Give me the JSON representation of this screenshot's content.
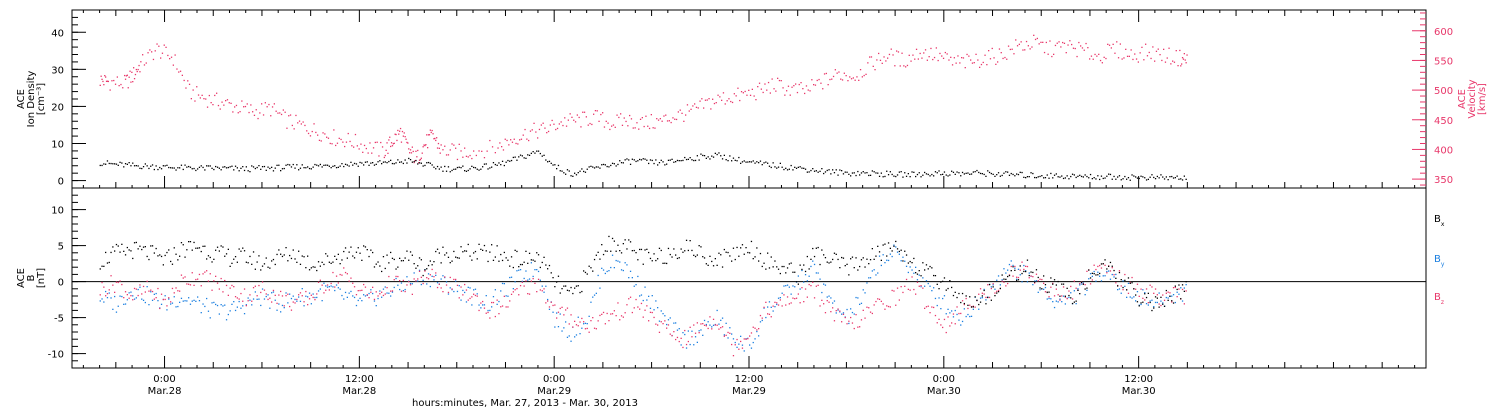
{
  "chart_data": [
    {
      "type": "scatter",
      "panel": "top",
      "left_axis": {
        "label_lines": [
          "ACE",
          "Ion Density",
          "[cm⁻³]"
        ],
        "ylim": [
          -2,
          46
        ],
        "ticks": [
          0,
          10,
          20,
          30,
          40
        ],
        "tick_labels": [
          "0",
          "10",
          "20",
          "30",
          "40"
        ],
        "color": "#000000"
      },
      "right_axis": {
        "label_lines": [
          "ACE",
          "Velocity",
          "[km/s]"
        ],
        "ylim": [
          335,
          635
        ],
        "ticks": [
          350,
          400,
          450,
          500,
          550,
          600
        ],
        "tick_labels": [
          "350",
          "400",
          "450",
          "500",
          "550",
          "600"
        ],
        "color": "#e8376a"
      },
      "series": [
        {
          "color": "#e8376a",
          "axis": "right",
          "x": [
            -4,
            -3.5,
            -2.5,
            -2,
            -1.5,
            -0.5,
            0.5,
            1.5,
            2.5,
            3.5,
            4.5,
            5.5,
            6.5,
            7.5,
            8.5,
            9.5,
            10.5,
            11.5,
            12.5,
            13.5,
            14,
            14.5,
            15,
            15.5,
            16,
            16.5,
            17,
            18,
            19,
            20.5,
            21.5,
            22.5,
            23.5,
            24.5,
            25.5,
            26.5,
            27.5,
            28.5,
            29.5,
            30.5,
            31.5,
            32.5,
            33.5,
            34.5,
            35.5,
            36.5,
            37.5,
            38.5,
            39.5,
            40.5,
            41.5,
            42.5,
            43.5,
            44.5,
            45.5,
            46.5,
            47.5,
            48.5,
            49.5,
            50.5,
            51.5,
            52.5,
            53.5,
            54.5,
            55.5,
            56.5,
            57.5,
            58.5,
            59.5,
            60.5,
            61.5,
            62.5,
            63
          ],
          "y": [
            518,
            515,
            512,
            525,
            545,
            570,
            555,
            498,
            487,
            480,
            472,
            465,
            470,
            450,
            440,
            430,
            420,
            415,
            405,
            398,
            415,
            430,
            400,
            385,
            410,
            425,
            400,
            396,
            398,
            405,
            420,
            430,
            435,
            448,
            450,
            455,
            445,
            450,
            445,
            448,
            458,
            465,
            480,
            488,
            492,
            498,
            510,
            502,
            500,
            515,
            528,
            525,
            545,
            560,
            550,
            565,
            560,
            548,
            548,
            555,
            560,
            575,
            580,
            570,
            575,
            568,
            558,
            570,
            560,
            565,
            560,
            555,
            552
          ]
        },
        {
          "color": "#000000",
          "axis": "left",
          "x": [
            -4,
            -3,
            -2,
            -1,
            0,
            1,
            2,
            3,
            4,
            5,
            6,
            7,
            8,
            9,
            10,
            11,
            12,
            13,
            14,
            15,
            16,
            17,
            18,
            19,
            20,
            21,
            22,
            23,
            24,
            25,
            26,
            27,
            28,
            29,
            30,
            31,
            32,
            33,
            34,
            35,
            36,
            37,
            38,
            39,
            40,
            41,
            42,
            43,
            44,
            45,
            46,
            47,
            48,
            49,
            50,
            51,
            52,
            53,
            54,
            55,
            56,
            57,
            58,
            59,
            60,
            61,
            62,
            63
          ],
          "y": [
            5,
            4.5,
            4.2,
            4,
            3.8,
            3.6,
            3.5,
            3.5,
            3.4,
            3.3,
            3.5,
            3.6,
            3.8,
            4,
            4.2,
            4.5,
            4.8,
            4.8,
            5,
            5.5,
            4.5,
            3.5,
            3.2,
            3.5,
            4,
            5,
            6.5,
            8,
            4,
            2,
            3,
            4,
            5,
            5.5,
            5,
            5,
            6,
            6.5,
            7,
            6,
            5,
            4.5,
            4,
            3.5,
            3,
            2.5,
            2.2,
            2.2,
            2,
            1.8,
            1.8,
            2,
            2.2,
            2,
            2.2,
            2,
            1.8,
            1.6,
            1.5,
            1.4,
            1.3,
            1.2,
            1.2,
            1.1,
            1,
            1,
            0.9,
            0.8
          ]
        }
      ]
    },
    {
      "type": "scatter",
      "panel": "bottom",
      "left_axis": {
        "label_lines": [
          "ACE",
          "B",
          "[nT]"
        ],
        "ylim": [
          -12,
          13
        ],
        "ticks": [
          -10,
          -5,
          0,
          5,
          10
        ],
        "tick_labels": [
          "-10",
          "-5",
          "0",
          "5",
          "10"
        ]
      },
      "zero_line": true,
      "legend_position": "right",
      "series": [
        {
          "legend": "B",
          "legend_sub": "x",
          "color": "#000000",
          "x": [
            -4,
            -3,
            -2,
            -1,
            0,
            1,
            2,
            3,
            4,
            5,
            6,
            7,
            8,
            9,
            10,
            11,
            12,
            13,
            14,
            15,
            16,
            17,
            18,
            19,
            20,
            21,
            22,
            23,
            24,
            25,
            26,
            27,
            28,
            29,
            30,
            31,
            32,
            33,
            34,
            35,
            36,
            37,
            38,
            39,
            40,
            41,
            42,
            43,
            44,
            45,
            46,
            47,
            48,
            49,
            50,
            51,
            52,
            53,
            54,
            55,
            56,
            57,
            58,
            59,
            60,
            61,
            62,
            63
          ],
          "y": [
            3,
            4,
            4.5,
            4,
            3,
            4.5,
            5,
            4,
            3.5,
            3.5,
            2.5,
            3.5,
            4,
            2.5,
            3,
            4,
            4.5,
            2.5,
            3,
            3.5,
            2,
            4,
            4,
            4,
            4,
            3.5,
            3,
            3.5,
            0,
            -2,
            1,
            5,
            5.5,
            4,
            3,
            4,
            5,
            4,
            3,
            4,
            5,
            3,
            2,
            1,
            4,
            3,
            2,
            3,
            4,
            5,
            3,
            1,
            0,
            -2,
            -3,
            -1,
            1,
            2,
            0,
            -1,
            -2,
            1,
            2,
            0,
            -2,
            -3,
            -2,
            -1
          ]
        },
        {
          "legend": "B",
          "legend_sub": "y",
          "color": "#1b7fe0",
          "x": [
            -4,
            -3,
            -2,
            -1,
            0,
            1,
            2,
            3,
            4,
            5,
            6,
            7,
            8,
            9,
            10,
            11,
            12,
            13,
            14,
            15,
            16,
            17,
            18,
            19,
            20,
            21,
            22,
            23,
            24,
            25,
            26,
            27,
            28,
            29,
            30,
            31,
            32,
            33,
            34,
            35,
            36,
            37,
            38,
            39,
            40,
            41,
            42,
            43,
            44,
            45,
            46,
            47,
            48,
            49,
            50,
            51,
            52,
            53,
            54,
            55,
            56,
            57,
            58,
            59,
            60,
            61,
            62,
            63
          ],
          "y": [
            -2,
            -3,
            -1,
            -2,
            -3,
            -2,
            -3,
            -4,
            -4,
            -3,
            -2,
            -3,
            -2,
            -2,
            -1,
            -2,
            -3,
            -2,
            -1,
            0,
            1,
            0,
            -1,
            -2,
            -3,
            -1,
            1,
            2,
            -5,
            -7,
            -5,
            2,
            3,
            0,
            -3,
            -6,
            -8,
            -7,
            -5,
            -8,
            -9,
            -4,
            -2,
            0,
            2,
            -3,
            -5,
            -2,
            3,
            4,
            2,
            -1,
            -3,
            -5,
            -3,
            0,
            2,
            1,
            -1,
            -3,
            -2,
            0,
            2,
            -1,
            -2,
            -3,
            -2,
            -1
          ]
        },
        {
          "legend": "B",
          "legend_sub": "z",
          "color": "#e8376a",
          "x": [
            -4,
            -3,
            -2,
            -1,
            0,
            1,
            2,
            3,
            4,
            5,
            6,
            7,
            8,
            9,
            10,
            11,
            12,
            13,
            14,
            15,
            16,
            17,
            18,
            19,
            20,
            21,
            22,
            23,
            24,
            25,
            26,
            27,
            28,
            29,
            30,
            31,
            32,
            33,
            34,
            35,
            36,
            37,
            38,
            39,
            40,
            41,
            42,
            43,
            44,
            45,
            46,
            47,
            48,
            49,
            50,
            51,
            52,
            53,
            54,
            55,
            56,
            57,
            58,
            59,
            60,
            61,
            62,
            63
          ],
          "y": [
            -1,
            0,
            -2,
            -1,
            -3,
            0,
            1,
            0,
            -1,
            -2,
            -1,
            -2,
            -3,
            -2,
            0,
            1,
            -1,
            -2,
            0,
            -1,
            1,
            0,
            -1,
            -2,
            -4,
            -3,
            -1,
            0,
            -4,
            -5,
            -6,
            -5,
            -4,
            -3,
            -5,
            -7,
            -8,
            -6,
            -5,
            -9,
            -7,
            -4,
            -3,
            -2,
            -1,
            -4,
            -6,
            -5,
            -3,
            -2,
            0,
            -3,
            -6,
            -4,
            -2,
            -1,
            1,
            2,
            0,
            -2,
            -1,
            1,
            2,
            0,
            -1,
            -2,
            -2,
            -2
          ]
        }
      ]
    }
  ],
  "x_axis": {
    "title": "hours:minutes, Mar. 27, 2013 - Mar. 30, 2013",
    "xlim": [
      -5.7,
      77.7
    ],
    "major_ticks": [
      0,
      12,
      24,
      36,
      48,
      60
    ],
    "tick_labels": [
      {
        "time": "0:00",
        "date": "Mar.28"
      },
      {
        "time": "12:00",
        "date": "Mar.28"
      },
      {
        "time": "0:00",
        "date": "Mar.29"
      },
      {
        "time": "12:00",
        "date": "Mar.29"
      },
      {
        "time": "0:00",
        "date": "Mar.30"
      },
      {
        "time": "12:00",
        "date": "Mar.30"
      }
    ]
  },
  "colors": {
    "axis": "#000000",
    "velocity": "#e8376a",
    "density": "#000000",
    "bx": "#000000",
    "by": "#1b7fe0",
    "bz": "#e8376a"
  }
}
